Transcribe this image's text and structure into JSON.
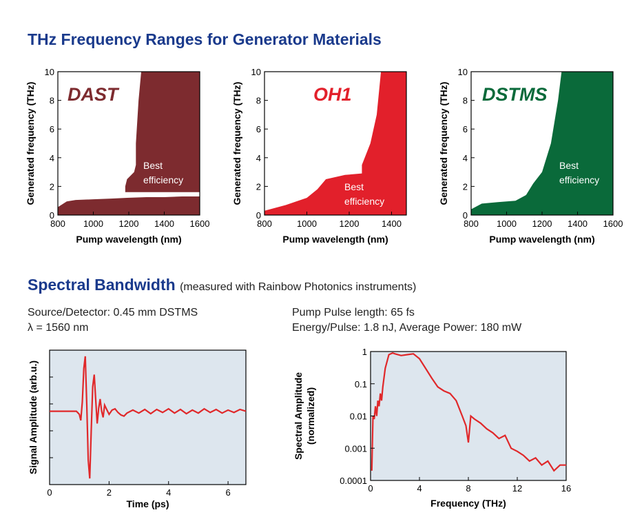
{
  "titles": {
    "section1": "THz Frequency Ranges for Generator Materials",
    "section2": "Spectral Bandwidth",
    "section2_note": "(measured with Rainbow Photonics instruments)"
  },
  "info": {
    "left_line1": "Source/Detector: 0.45 mm DSTMS",
    "left_line2": "λ = 1560 nm",
    "right_line1": "Pump Pulse length: 65 fs",
    "right_line2": "Energy/Pulse: 1.8 nJ, Average Power: 180 mW"
  },
  "colors": {
    "title_blue": "#1a3a8c",
    "dast": "#7d2b2f",
    "oh1": "#e2202b",
    "dstms": "#0a6a3a",
    "signal": "#e0282a",
    "plot_bg": "#dde6ee"
  },
  "chart_data": [
    {
      "type": "area",
      "material": "DAST",
      "annotation": "Best efficiency",
      "annotation_lines": [
        "Best",
        "efficiency"
      ],
      "xlabel": "Pump wavelength (nm)",
      "ylabel": "Generated frequency (THz)",
      "xlim": [
        800,
        1600
      ],
      "ylim": [
        0,
        10
      ],
      "xticks": [
        800,
        1000,
        1200,
        1400,
        1600
      ],
      "yticks": [
        0,
        2,
        4,
        6,
        8,
        10
      ],
      "color": "#7d2b2f",
      "boundary_upper": [
        [
          800,
          0.55
        ],
        [
          850,
          0.95
        ],
        [
          900,
          1.05
        ],
        [
          1000,
          1.1
        ],
        [
          1100,
          1.15
        ],
        [
          1190,
          1.2
        ],
        [
          1300,
          1.25
        ],
        [
          1400,
          1.25
        ],
        [
          1500,
          1.3
        ],
        [
          1600,
          1.3
        ]
      ],
      "boundary_lower": [
        [
          800,
          0.0
        ],
        [
          1600,
          0.0
        ]
      ],
      "region_upper_left_edge": [
        [
          1180,
          1.6
        ],
        [
          1180,
          2.0
        ],
        [
          1190,
          2.5
        ],
        [
          1230,
          3.0
        ],
        [
          1240,
          3.5
        ],
        [
          1240,
          5.0
        ],
        [
          1255,
          8.0
        ],
        [
          1270,
          10.0
        ]
      ]
    },
    {
      "type": "area",
      "material": "OH1",
      "annotation": "Best efficiency",
      "annotation_lines": [
        "Best",
        "efficiency"
      ],
      "xlabel": "Pump wavelength (nm)",
      "ylabel": "Generated frequency (THz)",
      "xlim": [
        800,
        1470
      ],
      "ylim": [
        0,
        10
      ],
      "xticks": [
        800,
        1000,
        1200,
        1400
      ],
      "yticks": [
        0,
        2,
        4,
        6,
        8,
        10
      ],
      "color": "#e2202b",
      "region_left_edge": [
        [
          800,
          0.3
        ],
        [
          900,
          0.7
        ],
        [
          1000,
          1.2
        ],
        [
          1050,
          1.8
        ],
        [
          1090,
          2.5
        ],
        [
          1180,
          2.8
        ],
        [
          1260,
          2.9
        ],
        [
          1260,
          3.5
        ],
        [
          1300,
          5.0
        ],
        [
          1330,
          7.0
        ],
        [
          1350,
          10.0
        ]
      ]
    },
    {
      "type": "area",
      "material": "DSTMS",
      "annotation": "Best efficiency",
      "annotation_lines": [
        "Best",
        "efficiency"
      ],
      "xlabel": "Pump wavelength (nm)",
      "ylabel": "Generated frequency (THz)",
      "xlim": [
        800,
        1600
      ],
      "ylim": [
        0,
        10
      ],
      "xticks": [
        800,
        1000,
        1200,
        1400,
        1600
      ],
      "yticks": [
        0,
        2,
        4,
        6,
        8,
        10
      ],
      "color": "#0a6a3a",
      "region_left_edge": [
        [
          800,
          0.4
        ],
        [
          860,
          0.8
        ],
        [
          950,
          0.9
        ],
        [
          1050,
          1.0
        ],
        [
          1110,
          1.4
        ],
        [
          1150,
          2.2
        ],
        [
          1200,
          3.0
        ],
        [
          1250,
          5.0
        ],
        [
          1290,
          8.0
        ],
        [
          1310,
          10.0
        ]
      ]
    },
    {
      "type": "line",
      "xlabel": "Time (ps)",
      "ylabel": "Signal Amplitude (arb.u.)",
      "xlim": [
        0,
        6.6
      ],
      "ylim": [
        -1.2,
        1.0
      ],
      "xticks": [
        0,
        2,
        4,
        6
      ],
      "grid": false,
      "series": [
        {
          "x": [
            0,
            0.5,
            0.9,
            1.0,
            1.05,
            1.1,
            1.15,
            1.2,
            1.25,
            1.3,
            1.35,
            1.4,
            1.45,
            1.5,
            1.55,
            1.6,
            1.65,
            1.7,
            1.75,
            1.8,
            1.85,
            1.9,
            2.0,
            2.1,
            2.2,
            2.3,
            2.4,
            2.5,
            2.6,
            2.8,
            3.0,
            3.2,
            3.4,
            3.6,
            3.8,
            4.0,
            4.2,
            4.4,
            4.6,
            4.8,
            5.0,
            5.2,
            5.4,
            5.6,
            5.8,
            6.0,
            6.2,
            6.4,
            6.6
          ],
          "y": [
            0,
            0,
            0,
            -0.05,
            -0.15,
            0.15,
            0.7,
            0.9,
            0.1,
            -0.8,
            -1.1,
            -0.3,
            0.4,
            0.6,
            0.2,
            -0.2,
            0.05,
            0.2,
            0.0,
            -0.1,
            0.1,
            0.05,
            -0.05,
            0.02,
            0.04,
            -0.02,
            -0.06,
            -0.08,
            -0.03,
            0.02,
            -0.03,
            0.03,
            -0.04,
            0.03,
            -0.02,
            0.04,
            -0.03,
            0.03,
            -0.04,
            0.02,
            -0.03,
            0.04,
            -0.02,
            0.03,
            -0.03,
            0.02,
            -0.02,
            0.03,
            0.0
          ]
        }
      ]
    },
    {
      "type": "line",
      "xlabel": "Frequency (THz)",
      "ylabel": "Spectral Amplitude (normalized)",
      "ylabel_lines": [
        "Spectral Amplitude",
        "(normalized)"
      ],
      "yscale": "log",
      "xlim": [
        0,
        16
      ],
      "ylim": [
        0.0001,
        1
      ],
      "xticks": [
        0,
        4,
        8,
        12,
        16
      ],
      "ytick_labels": [
        "1",
        "0.1",
        "0.01",
        "0.001",
        "0.0001"
      ],
      "series": [
        {
          "x": [
            0.1,
            0.2,
            0.3,
            0.4,
            0.5,
            0.6,
            0.7,
            0.8,
            0.9,
            1.0,
            1.2,
            1.5,
            1.8,
            2.0,
            2.5,
            3.0,
            3.5,
            4.0,
            4.5,
            5.0,
            5.5,
            6.0,
            6.5,
            7.0,
            7.5,
            7.8,
            8.0,
            8.2,
            8.5,
            9.0,
            9.5,
            10.0,
            10.5,
            11.0,
            11.5,
            12.0,
            12.5,
            13.0,
            13.5,
            14.0,
            14.5,
            15.0,
            15.5,
            16.0
          ],
          "y": [
            0.0002,
            0.01,
            0.008,
            0.02,
            0.01,
            0.03,
            0.02,
            0.05,
            0.03,
            0.08,
            0.3,
            0.8,
            0.9,
            0.85,
            0.75,
            0.8,
            0.85,
            0.6,
            0.3,
            0.15,
            0.08,
            0.06,
            0.05,
            0.03,
            0.01,
            0.005,
            0.0015,
            0.01,
            0.008,
            0.006,
            0.004,
            0.003,
            0.002,
            0.0025,
            0.001,
            0.0008,
            0.0006,
            0.0004,
            0.0005,
            0.0003,
            0.0004,
            0.0002,
            0.0003,
            0.0003
          ]
        }
      ]
    }
  ]
}
